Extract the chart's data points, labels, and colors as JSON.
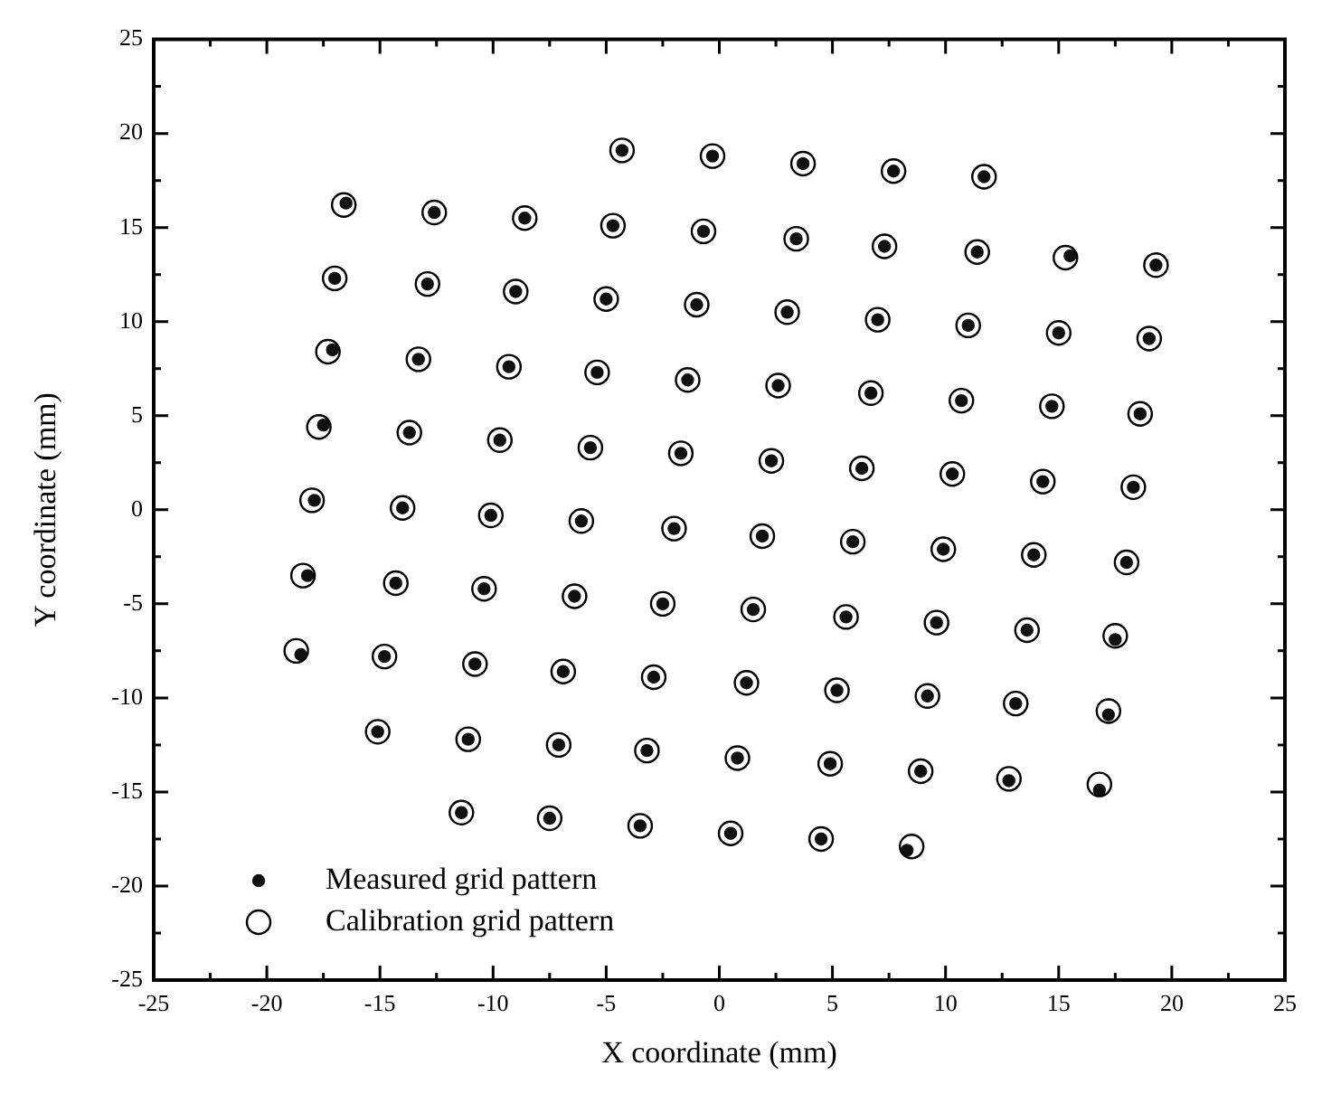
{
  "chart_data": {
    "type": "scatter",
    "xlabel": "X coordinate (mm)",
    "ylabel": "Y coordinate (mm)",
    "xlim": [
      -25,
      25
    ],
    "ylim": [
      -25,
      25
    ],
    "xticks": [
      -25,
      {
        "value": -22.5,
        "label": null
      },
      -20,
      {
        "value": -17.5,
        "label": null
      },
      -15,
      {
        "value": -12.5,
        "label": null
      },
      -10,
      {
        "value": -7.5,
        "label": null
      },
      -5,
      {
        "value": -2.5,
        "label": null
      },
      0,
      {
        "value": 2.5,
        "label": null
      },
      5,
      {
        "value": 7.5,
        "label": null
      },
      10,
      {
        "value": 12.5,
        "label": null
      },
      15,
      {
        "value": 17.5,
        "label": null
      },
      20,
      {
        "value": 22.5,
        "label": null
      },
      25
    ],
    "yticks": [
      -25,
      {
        "value": -22.5,
        "label": null
      },
      -20,
      {
        "value": -17.5,
        "label": null
      },
      -15,
      {
        "value": -12.5,
        "label": null
      },
      -10,
      {
        "value": -7.5,
        "label": null
      },
      -5,
      {
        "value": -2.5,
        "label": null
      },
      0,
      {
        "value": 2.5,
        "label": null
      },
      5,
      {
        "value": 7.5,
        "label": null
      },
      10,
      {
        "value": 12.5,
        "label": null
      },
      15,
      {
        "value": 17.5,
        "label": null
      },
      20,
      {
        "value": 22.5,
        "label": null
      },
      25
    ],
    "grid": false,
    "legend": "bottom left",
    "series": [
      {
        "name": "Calibration grid pattern",
        "color": "#000000",
        "marker": "circle",
        "x": [
          -4.3,
          -0.3,
          3.7,
          7.7,
          11.7,
          -16.6,
          -12.6,
          -8.6,
          -4.7,
          -0.7,
          3.4,
          7.3,
          11.4,
          15.3,
          19.3,
          -17.0,
          -12.9,
          -9.0,
          -5.0,
          -1.0,
          3.0,
          7.0,
          11.0,
          15.0,
          19.0,
          -17.3,
          -13.3,
          -9.3,
          -5.4,
          -1.4,
          2.6,
          6.7,
          10.7,
          14.7,
          18.6,
          -17.7,
          -13.7,
          -9.7,
          -5.7,
          -1.7,
          2.3,
          6.3,
          10.3,
          14.3,
          18.3,
          -18.0,
          -14.0,
          -10.1,
          -6.1,
          -2.0,
          1.9,
          5.9,
          9.9,
          13.9,
          18.0,
          -18.4,
          -14.3,
          -10.4,
          -6.4,
          -2.5,
          1.5,
          5.6,
          9.6,
          13.6,
          17.5,
          -18.7,
          -14.8,
          -10.8,
          -6.9,
          -2.9,
          1.2,
          5.2,
          9.2,
          13.1,
          17.2,
          -15.1,
          -11.1,
          -7.1,
          -3.2,
          0.8,
          4.9,
          8.9,
          12.8,
          16.8,
          -11.4,
          -7.5,
          -3.5,
          0.5,
          4.5,
          8.5
        ],
        "values": [
          19.1,
          18.8,
          18.4,
          18.0,
          17.7,
          16.2,
          15.8,
          15.5,
          15.1,
          14.8,
          14.4,
          14.0,
          13.7,
          13.4,
          13.0,
          12.3,
          12.0,
          11.6,
          11.2,
          10.9,
          10.5,
          10.1,
          9.8,
          9.4,
          9.1,
          8.4,
          8.0,
          7.6,
          7.3,
          6.9,
          6.6,
          6.2,
          5.8,
          5.5,
          5.1,
          4.4,
          4.1,
          3.7,
          3.3,
          3.0,
          2.6,
          2.2,
          1.9,
          1.5,
          1.2,
          0.5,
          0.1,
          -0.3,
          -0.6,
          -1.0,
          -1.4,
          -1.7,
          -2.1,
          -2.4,
          -2.8,
          -3.5,
          -3.9,
          -4.2,
          -4.6,
          -5.0,
          -5.3,
          -5.7,
          -6.0,
          -6.4,
          -6.7,
          -7.5,
          -7.8,
          -8.2,
          -8.6,
          -8.9,
          -9.2,
          -9.6,
          -9.9,
          -10.3,
          -10.7,
          -11.8,
          -12.2,
          -12.5,
          -12.8,
          -13.2,
          -13.5,
          -13.9,
          -14.3,
          -14.6,
          -16.1,
          -16.4,
          -16.8,
          -17.2,
          -17.5,
          -17.9
        ]
      },
      {
        "name": "Measured grid pattern",
        "color": "#111111",
        "marker": "circle",
        "x": [
          -4.3,
          -0.3,
          3.7,
          7.7,
          11.7,
          -16.5,
          -12.6,
          -8.6,
          -4.7,
          -0.7,
          3.4,
          7.3,
          11.4,
          15.5,
          19.3,
          -17.0,
          -12.9,
          -9.0,
          -5.0,
          -1.0,
          3.0,
          7.0,
          11.0,
          15.0,
          19.0,
          -17.1,
          -13.3,
          -9.3,
          -5.4,
          -1.4,
          2.6,
          6.7,
          10.7,
          14.7,
          18.6,
          -17.5,
          -13.7,
          -9.7,
          -5.7,
          -1.7,
          2.3,
          6.3,
          10.3,
          14.3,
          18.3,
          -17.9,
          -14.0,
          -10.1,
          -6.1,
          -2.0,
          1.9,
          5.9,
          9.9,
          13.9,
          18.0,
          -18.2,
          -14.3,
          -10.4,
          -6.4,
          -2.5,
          1.5,
          5.6,
          9.6,
          13.6,
          17.5,
          -18.5,
          -14.8,
          -10.8,
          -6.9,
          -2.9,
          1.2,
          5.2,
          9.2,
          13.1,
          17.2,
          -15.1,
          -11.1,
          -7.1,
          -3.2,
          0.8,
          4.9,
          8.9,
          12.8,
          16.8,
          -11.4,
          -7.5,
          -3.5,
          0.5,
          4.5,
          8.3
        ],
        "values": [
          19.1,
          18.8,
          18.4,
          18.0,
          17.7,
          16.3,
          15.8,
          15.5,
          15.1,
          14.8,
          14.4,
          14.0,
          13.7,
          13.5,
          13.0,
          12.3,
          12.0,
          11.6,
          11.2,
          10.9,
          10.5,
          10.1,
          9.8,
          9.4,
          9.1,
          8.5,
          8.0,
          7.6,
          7.3,
          6.9,
          6.6,
          6.2,
          5.8,
          5.5,
          5.1,
          4.5,
          4.1,
          3.7,
          3.3,
          3.0,
          2.6,
          2.2,
          1.9,
          1.5,
          1.2,
          0.5,
          0.1,
          -0.3,
          -0.6,
          -1.0,
          -1.4,
          -1.7,
          -2.1,
          -2.4,
          -2.8,
          -3.5,
          -3.9,
          -4.2,
          -4.6,
          -5.0,
          -5.3,
          -5.7,
          -6.0,
          -6.4,
          -6.9,
          -7.7,
          -7.8,
          -8.2,
          -8.6,
          -8.9,
          -9.2,
          -9.6,
          -9.9,
          -10.3,
          -10.9,
          -11.8,
          -12.2,
          -12.5,
          -12.8,
          -13.2,
          -13.5,
          -13.9,
          -14.4,
          -14.9,
          -16.1,
          -16.4,
          -16.8,
          -17.2,
          -17.5,
          -18.1
        ]
      }
    ]
  }
}
